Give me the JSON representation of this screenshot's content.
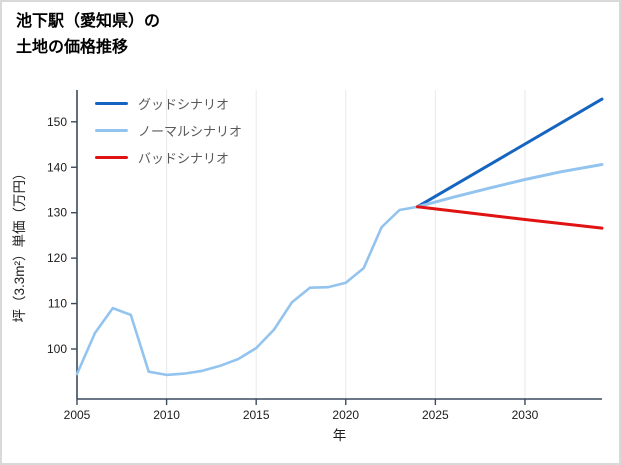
{
  "title": {
    "line1": "池下駅（愛知県）の",
    "line2": "土地の価格推移"
  },
  "colors": {
    "axis": "#3a4a5e",
    "grid": "#e8e8e8",
    "good": "#1565c0",
    "normal": "#93c4ef",
    "bad": "#e01212"
  },
  "chart_data": {
    "type": "line",
    "title": "池下駅（愛知県）の土地の価格推移",
    "xlabel": "年",
    "ylabel": "坪（3.3m²）単価（万円）",
    "xlim": [
      2005,
      2034.3
    ],
    "ylim": [
      89,
      157
    ],
    "xticks": [
      2005,
      2010,
      2015,
      2020,
      2025,
      2030
    ],
    "yticks": [
      100,
      110,
      120,
      130,
      140,
      150
    ],
    "grid": "vertical",
    "legend_position": "upper-left",
    "history": {
      "color": "#93c4ef",
      "x": [
        2005,
        2006,
        2007,
        2008,
        2009,
        2010,
        2011,
        2012,
        2013,
        2014,
        2015,
        2016,
        2017,
        2018,
        2019,
        2020,
        2021,
        2022,
        2023,
        2024
      ],
      "values": [
        94.5,
        103.5,
        109,
        107.5,
        95,
        94.3,
        94.6,
        95.2,
        96.3,
        97.8,
        100.2,
        104.3,
        110.3,
        113.5,
        113.6,
        114.6,
        117.8,
        126.8,
        130.6,
        131.3
      ]
    },
    "series": [
      {
        "name": "グッドシナリオ",
        "color": "#1565c0",
        "x": [
          2024,
          2034.3
        ],
        "values": [
          131.3,
          155
        ]
      },
      {
        "name": "ノーマルシナリオ",
        "color": "#93c4ef",
        "x": [
          2024,
          2026,
          2028,
          2030,
          2032,
          2034.3
        ],
        "values": [
          131.3,
          133.4,
          135.4,
          137.3,
          139.0,
          140.6
        ]
      },
      {
        "name": "バッドシナリオ",
        "color": "#e01212",
        "x": [
          2024,
          2027,
          2030,
          2034.3
        ],
        "values": [
          131.3,
          129.9,
          128.5,
          126.6
        ]
      }
    ]
  }
}
